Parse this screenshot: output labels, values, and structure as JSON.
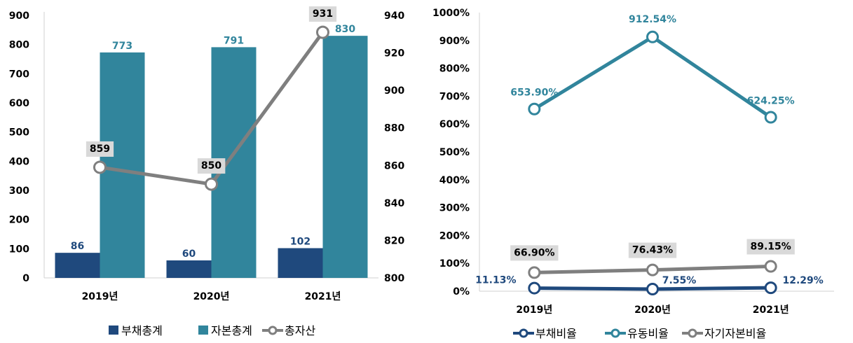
{
  "colors": {
    "debt": "#1f497d",
    "equity": "#31859c",
    "total": "#7f7f7f",
    "label_box": "#d9d9d9"
  },
  "chart_data": [
    {
      "type": "bar",
      "categories": [
        "2019년",
        "2020년",
        "2021년"
      ],
      "series": [
        {
          "name": "부채총계",
          "kind": "bar",
          "axis": "left",
          "values": [
            86,
            60,
            102
          ]
        },
        {
          "name": "자본총계",
          "kind": "bar",
          "axis": "left",
          "values": [
            773,
            791,
            830
          ]
        },
        {
          "name": "총자산",
          "kind": "line",
          "axis": "right",
          "values": [
            859,
            850,
            931
          ]
        }
      ],
      "ylim": [
        0,
        900
      ],
      "yticks": [
        0,
        100,
        200,
        300,
        400,
        500,
        600,
        700,
        800,
        900
      ],
      "y2lim": [
        800,
        940
      ],
      "y2ticks": [
        800,
        820,
        840,
        860,
        880,
        900,
        920,
        940
      ],
      "legend": "bottom",
      "grid": false
    },
    {
      "type": "line",
      "categories": [
        "2019년",
        "2020년",
        "2021년"
      ],
      "series": [
        {
          "name": "부채비율",
          "values": [
            11.13,
            7.55,
            12.29
          ],
          "labels": [
            "11.13%",
            "7.55%",
            "12.29%"
          ]
        },
        {
          "name": "유동비율",
          "values": [
            653.9,
            912.54,
            624.25
          ],
          "labels": [
            "653.90%",
            "912.54%",
            "624.25%"
          ]
        },
        {
          "name": "자기자본비율",
          "values": [
            66.9,
            76.43,
            89.15
          ],
          "labels": [
            "66.90%",
            "76.43%",
            "89.15%"
          ]
        }
      ],
      "ylim": [
        0,
        1000
      ],
      "yticks": [
        "0%",
        "100%",
        "200%",
        "300%",
        "400%",
        "500%",
        "600%",
        "700%",
        "800%",
        "900%",
        "1000%"
      ],
      "legend": "bottom",
      "grid": false
    }
  ]
}
